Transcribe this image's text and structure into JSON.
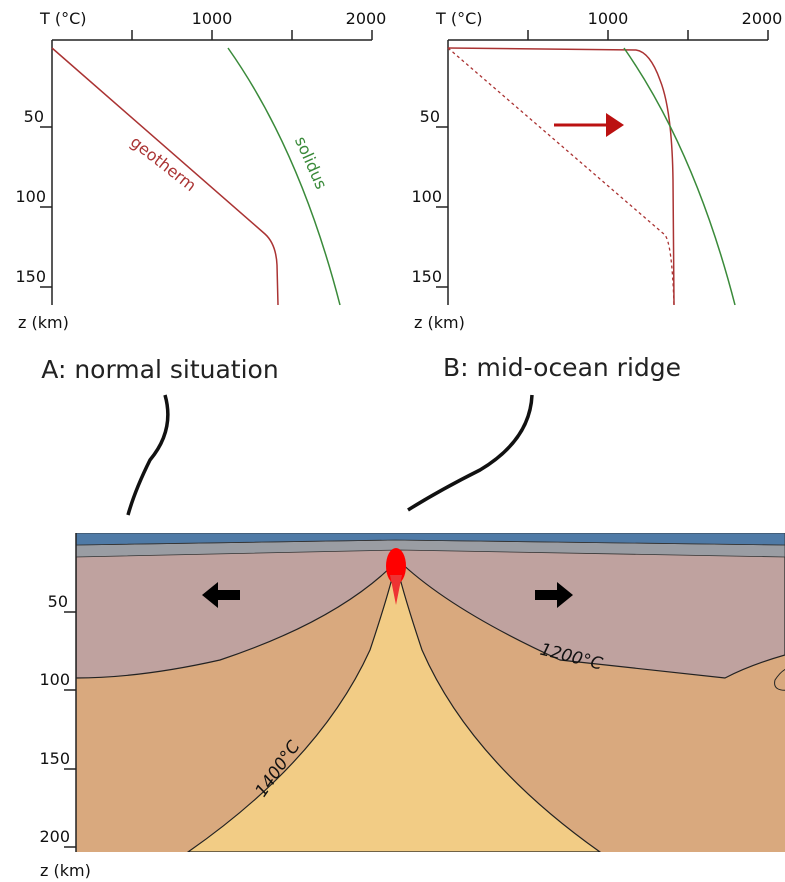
{
  "panels": [
    {
      "axis_title_x": "T (°C)",
      "x_ticks": [
        1000,
        2000
      ],
      "y_ticks": [
        50,
        100,
        150
      ],
      "axis_title_y": "z (km)",
      "curve_labels": [
        "geotherm",
        "solidus"
      ],
      "caption": "A: normal situation"
    },
    {
      "axis_title_x": "T (°C)",
      "x_ticks": [
        1000,
        2000
      ],
      "y_ticks": [
        50,
        100,
        150
      ],
      "axis_title_y": "z (km)",
      "caption": "B: mid-ocean ridge"
    }
  ],
  "cross_section": {
    "y_ticks": [
      50,
      100,
      150,
      200
    ],
    "axis_title_y": "z (km)",
    "isotherms": [
      "1200°C",
      "1400°C"
    ]
  }
}
